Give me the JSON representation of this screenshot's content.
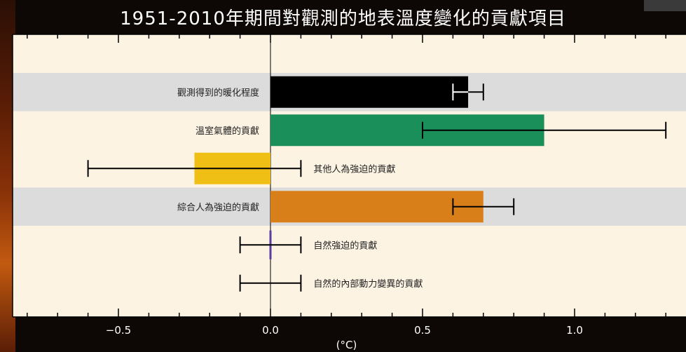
{
  "title": "1951-2010年期間對觀測的地表溫度變化的貢獻項目",
  "chart_data": {
    "type": "bar",
    "orientation": "horizontal",
    "title": "1951-2010年期間對觀測的地表溫度變化的貢獻項目",
    "xlabel": "(°C)",
    "xlim": [
      -0.85,
      1.35
    ],
    "xticks": [
      -0.5,
      0.0,
      0.5,
      1.0
    ],
    "xtick_labels": [
      "−0.5",
      "0.0",
      "0.5",
      "1.0"
    ],
    "categories": [
      "觀測得到的暖化程度",
      "溫室氣體的貢獻",
      "其他人為強迫的貢獻",
      "綜合人為強迫的貢獻",
      "自然強迫的貢獻",
      "自然的內部動力變異的貢獻"
    ],
    "values": [
      0.65,
      0.9,
      -0.25,
      0.7,
      0.0,
      0.0
    ],
    "error_low": [
      0.6,
      0.5,
      -0.6,
      0.6,
      -0.1,
      -0.1
    ],
    "error_high": [
      0.7,
      1.3,
      0.1,
      0.8,
      0.1,
      0.1
    ],
    "colors": [
      "#000000",
      "#1b8f5a",
      "#f0bf15",
      "#d97f1a",
      "#5a3fa0",
      "#000000"
    ],
    "row_shaded": [
      true,
      false,
      false,
      true,
      false,
      false
    ],
    "label_side": [
      "left",
      "left",
      "right",
      "left",
      "right",
      "right"
    ],
    "grid": false
  }
}
